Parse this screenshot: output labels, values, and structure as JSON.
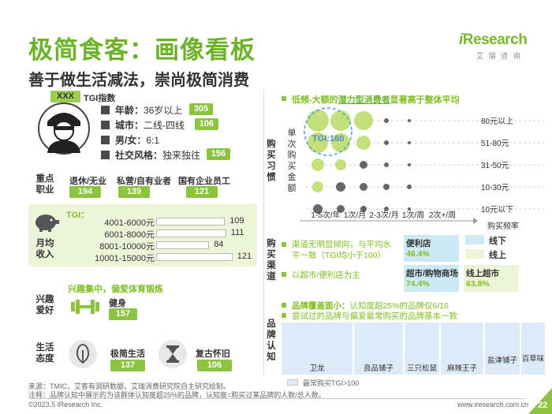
{
  "header": {
    "title": "极简食客：画像看板",
    "subtitle": "善于做生活减法，崇尚极简消费",
    "logo_i": "i",
    "logo_rest": "Research",
    "logo_cn": "艾 瑞 咨 询"
  },
  "profile": {
    "tag": "XXX",
    "tgi_label": "TGI指数",
    "rows": [
      {
        "label": "年龄：",
        "value": "36岁以上",
        "tgi": "305"
      },
      {
        "label": "城市：",
        "value": "二线-四线",
        "tgi": "106"
      },
      {
        "label": "男/女：",
        "value": "6:1",
        "tgi": ""
      },
      {
        "label": "社交风格：",
        "value": "独来独往",
        "tgi": "156"
      }
    ]
  },
  "occupation": {
    "title_l1": "重点",
    "title_l2": "职业",
    "items": [
      {
        "label": "退休/无业",
        "tgi": "194"
      },
      {
        "label": "私营/自有业者",
        "tgi": "139"
      },
      {
        "label": "国有企业员工",
        "tgi": "121"
      }
    ]
  },
  "income": {
    "title_l1": "月均",
    "title_l2": "收入",
    "tgi_label": "TGI：",
    "rows": [
      {
        "label": "4001-6000元",
        "value": 109
      },
      {
        "label": "6001-8000元",
        "value": 111
      },
      {
        "label": "8001-10000元",
        "value": 84
      },
      {
        "label": "10001-15000元",
        "value": 121
      }
    ]
  },
  "hobby": {
    "title_l1": "兴趣",
    "title_l2": "爱好",
    "desc": "兴趣集中，偏爱体育锻炼",
    "item": "健身",
    "tgi": "157"
  },
  "attitude": {
    "title_l1": "生活",
    "title_l2": "态度",
    "items": [
      {
        "label": "极简生活",
        "tgi": "137"
      },
      {
        "label": "复古怀旧",
        "tgi": "106"
      }
    ]
  },
  "habit": {
    "side_title": "购买习惯",
    "headline_pre": "低频-大额的",
    "headline_bold": "潜力型消费者",
    "headline_post": "显著高于整体平均",
    "y_title": "单次购买金额",
    "x_title": "购买频率",
    "tgi_label": "TGI:160",
    "x_labels": [
      "1-5次/年",
      "1次/月",
      "2-3次/月",
      "1次/周",
      "2次+/周"
    ],
    "y_labels": [
      "80元以上",
      "51-80元",
      "31-50元",
      "10-30元",
      "10元以下"
    ],
    "bubbles": [
      [
        14,
        13,
        12,
        3,
        2
      ],
      [
        13,
        12,
        9,
        3,
        2
      ],
      [
        8,
        7,
        5,
        3,
        2
      ],
      [
        7,
        6,
        5,
        4,
        3
      ],
      [
        6,
        5,
        4,
        3,
        2
      ]
    ]
  },
  "channel": {
    "side_title": "购买渠道",
    "bullet1": "渠道无明显倾向，与平均水平一致（TGI均小于100）",
    "bullet2": "以超市/便利店为主",
    "cells": [
      {
        "label": "便利店",
        "pct": "46.4%"
      },
      {
        "label": "超市/购物商场",
        "pct": "74.4%"
      },
      {
        "label": "线上超市",
        "pct": "63.8%"
      }
    ],
    "legend": [
      {
        "label": "线下",
        "color": "#cde9f5"
      },
      {
        "label": "线上",
        "color": "#eef4d8"
      }
    ]
  },
  "brand": {
    "side_title": "品牌认知",
    "bullet1_bold": "品牌覆盖面小：",
    "bullet1_rest": "认知度超25%的品牌仅6/16",
    "bullet2": "尝试过的品牌与偏爱最常购买的品牌基本一致",
    "brands": [
      "卫龙",
      "良品铺子",
      "三只松鼠",
      "麻辣王子",
      "盐津铺子",
      "百草味"
    ],
    "legend": "最常购买TGI>100"
  },
  "footer": {
    "source": "来源：TMIC，艾客有调研数据，艾瑞消费研究院自主研究绘制。",
    "note": "注释：品牌认知中展示的为该群体认知度超25%的品牌，认知度=购买过某品牌的人数/总人数。",
    "copyright": "©2023.5 iResearch Inc.",
    "url": "www.iresearch.com.cn",
    "page": "22"
  },
  "colors": {
    "brand_green": "#7fbf1f",
    "pill_green": "#8cc43f",
    "bubble_green": "#c4e07a",
    "panel_green": "#eef4d8"
  }
}
